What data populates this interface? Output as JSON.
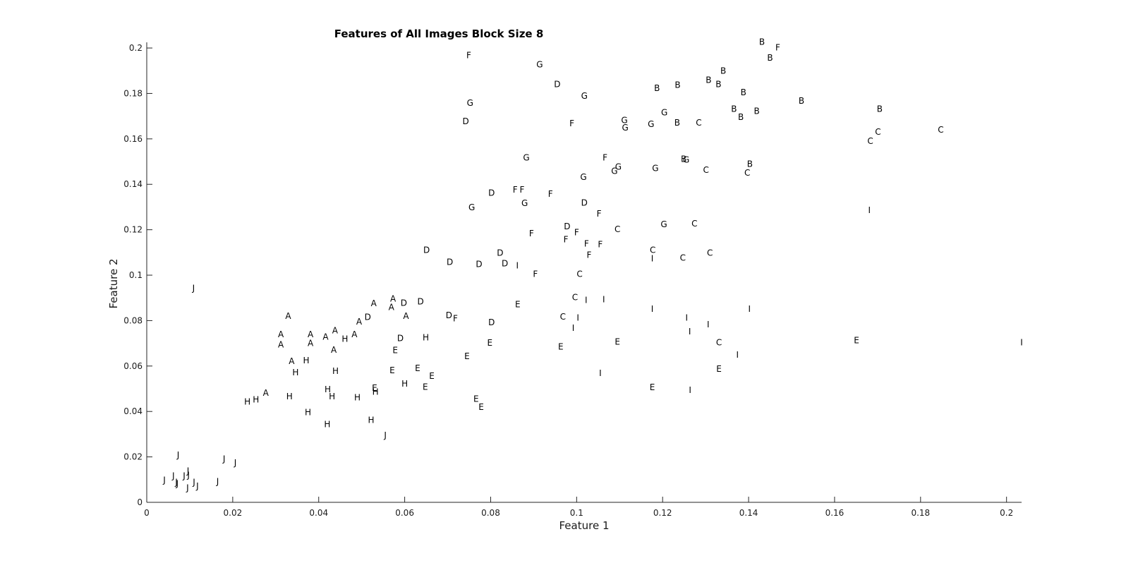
{
  "chart_data": {
    "type": "scatter",
    "title": "Features of All Images Block Size 8",
    "xlabel": "Feature 1",
    "ylabel": "Feature 2",
    "xlim": [
      0,
      0.2035
    ],
    "ylim": [
      0,
      0.2025
    ],
    "xticks": [
      0,
      0.02,
      0.04,
      0.06,
      0.08,
      0.1,
      0.12,
      0.14,
      0.16,
      0.18,
      0.2
    ],
    "xtick_labels": [
      "0",
      "0.02",
      "0.04",
      "0.06",
      "0.08",
      "0.1",
      "0.12",
      "0.14",
      "0.16",
      "0.18",
      "0.2"
    ],
    "yticks": [
      0,
      0.02,
      0.04,
      0.06,
      0.08,
      0.1,
      0.12,
      0.14,
      0.16,
      0.18,
      0.2
    ],
    "ytick_labels": [
      "0",
      "0.02",
      "0.04",
      "0.06",
      "0.08",
      "0.1",
      "0.12",
      "0.14",
      "0.16",
      "0.18",
      "0.2"
    ],
    "grid": false,
    "legend": "none",
    "marker": "text labels",
    "points": [
      {
        "x": 0.0329,
        "y": 0.0818,
        "label": "A"
      },
      {
        "x": 0.0312,
        "y": 0.0737,
        "label": "A"
      },
      {
        "x": 0.0312,
        "y": 0.0693,
        "label": "A"
      },
      {
        "x": 0.0337,
        "y": 0.0619,
        "label": "A"
      },
      {
        "x": 0.0381,
        "y": 0.0737,
        "label": "A"
      },
      {
        "x": 0.0381,
        "y": 0.0699,
        "label": "A"
      },
      {
        "x": 0.0416,
        "y": 0.0727,
        "label": "A"
      },
      {
        "x": 0.0438,
        "y": 0.0755,
        "label": "A"
      },
      {
        "x": 0.0435,
        "y": 0.0669,
        "label": "A"
      },
      {
        "x": 0.0483,
        "y": 0.0737,
        "label": "A"
      },
      {
        "x": 0.0494,
        "y": 0.0794,
        "label": "A"
      },
      {
        "x": 0.0528,
        "y": 0.0875,
        "label": "A"
      },
      {
        "x": 0.0573,
        "y": 0.0894,
        "label": "A"
      },
      {
        "x": 0.0569,
        "y": 0.0857,
        "label": "A"
      },
      {
        "x": 0.0603,
        "y": 0.0818,
        "label": "A"
      },
      {
        "x": 0.0277,
        "y": 0.048,
        "label": "A"
      },
      {
        "x": 0.1431,
        "y": 0.2025,
        "label": "B"
      },
      {
        "x": 0.145,
        "y": 0.1955,
        "label": "B"
      },
      {
        "x": 0.1341,
        "y": 0.1898,
        "label": "B"
      },
      {
        "x": 0.1307,
        "y": 0.1857,
        "label": "B"
      },
      {
        "x": 0.133,
        "y": 0.1838,
        "label": "B"
      },
      {
        "x": 0.1235,
        "y": 0.1835,
        "label": "B"
      },
      {
        "x": 0.1187,
        "y": 0.1822,
        "label": "B"
      },
      {
        "x": 0.1388,
        "y": 0.1803,
        "label": "B"
      },
      {
        "x": 0.1523,
        "y": 0.1765,
        "label": "B"
      },
      {
        "x": 0.1366,
        "y": 0.173,
        "label": "B"
      },
      {
        "x": 0.1419,
        "y": 0.172,
        "label": "B"
      },
      {
        "x": 0.1705,
        "y": 0.173,
        "label": "B"
      },
      {
        "x": 0.1382,
        "y": 0.1695,
        "label": "B"
      },
      {
        "x": 0.1234,
        "y": 0.167,
        "label": "B"
      },
      {
        "x": 0.1403,
        "y": 0.1488,
        "label": "B"
      },
      {
        "x": 0.1249,
        "y": 0.151,
        "label": "B"
      },
      {
        "x": 0.1701,
        "y": 0.1629,
        "label": "C"
      },
      {
        "x": 0.1847,
        "y": 0.1638,
        "label": "C"
      },
      {
        "x": 0.1683,
        "y": 0.1588,
        "label": "C"
      },
      {
        "x": 0.1284,
        "y": 0.167,
        "label": "C"
      },
      {
        "x": 0.1301,
        "y": 0.1462,
        "label": "C"
      },
      {
        "x": 0.1397,
        "y": 0.1449,
        "label": "C"
      },
      {
        "x": 0.1274,
        "y": 0.1225,
        "label": "C"
      },
      {
        "x": 0.1095,
        "y": 0.12,
        "label": "C"
      },
      {
        "x": 0.1177,
        "y": 0.1109,
        "label": "C"
      },
      {
        "x": 0.131,
        "y": 0.1097,
        "label": "C"
      },
      {
        "x": 0.1247,
        "y": 0.1075,
        "label": "C"
      },
      {
        "x": 0.1007,
        "y": 0.1003,
        "label": "C"
      },
      {
        "x": 0.0996,
        "y": 0.0901,
        "label": "C"
      },
      {
        "x": 0.0968,
        "y": 0.0816,
        "label": "C"
      },
      {
        "x": 0.1331,
        "y": 0.0702,
        "label": "C"
      },
      {
        "x": 0.0742,
        "y": 0.1676,
        "label": "D"
      },
      {
        "x": 0.0955,
        "y": 0.1838,
        "label": "D"
      },
      {
        "x": 0.0802,
        "y": 0.1361,
        "label": "D"
      },
      {
        "x": 0.1018,
        "y": 0.1317,
        "label": "D"
      },
      {
        "x": 0.0978,
        "y": 0.1213,
        "label": "D"
      },
      {
        "x": 0.0651,
        "y": 0.1109,
        "label": "D"
      },
      {
        "x": 0.0705,
        "y": 0.1056,
        "label": "D"
      },
      {
        "x": 0.0773,
        "y": 0.1047,
        "label": "D"
      },
      {
        "x": 0.0822,
        "y": 0.1097,
        "label": "D"
      },
      {
        "x": 0.0833,
        "y": 0.105,
        "label": "D"
      },
      {
        "x": 0.0598,
        "y": 0.0876,
        "label": "D"
      },
      {
        "x": 0.0637,
        "y": 0.0882,
        "label": "D"
      },
      {
        "x": 0.0514,
        "y": 0.0813,
        "label": "D"
      },
      {
        "x": 0.0703,
        "y": 0.0822,
        "label": "D"
      },
      {
        "x": 0.0802,
        "y": 0.0791,
        "label": "D"
      },
      {
        "x": 0.059,
        "y": 0.0721,
        "label": "D"
      },
      {
        "x": 0.0863,
        "y": 0.0869,
        "label": "E"
      },
      {
        "x": 0.0578,
        "y": 0.0667,
        "label": "E"
      },
      {
        "x": 0.0745,
        "y": 0.0642,
        "label": "E"
      },
      {
        "x": 0.0798,
        "y": 0.0701,
        "label": "E"
      },
      {
        "x": 0.0963,
        "y": 0.0683,
        "label": "E"
      },
      {
        "x": 0.1095,
        "y": 0.0705,
        "label": "E"
      },
      {
        "x": 0.1651,
        "y": 0.0712,
        "label": "E"
      },
      {
        "x": 0.0571,
        "y": 0.058,
        "label": "E"
      },
      {
        "x": 0.063,
        "y": 0.0589,
        "label": "E"
      },
      {
        "x": 0.0663,
        "y": 0.0555,
        "label": "E"
      },
      {
        "x": 0.053,
        "y": 0.0501,
        "label": "E"
      },
      {
        "x": 0.0648,
        "y": 0.0507,
        "label": "E"
      },
      {
        "x": 0.1176,
        "y": 0.0504,
        "label": "E"
      },
      {
        "x": 0.1331,
        "y": 0.0586,
        "label": "E"
      },
      {
        "x": 0.0766,
        "y": 0.0454,
        "label": "E"
      },
      {
        "x": 0.0778,
        "y": 0.0418,
        "label": "E"
      },
      {
        "x": 0.0749,
        "y": 0.1966,
        "label": "F"
      },
      {
        "x": 0.1468,
        "y": 0.2,
        "label": "F"
      },
      {
        "x": 0.0989,
        "y": 0.1667,
        "label": "F"
      },
      {
        "x": 0.1066,
        "y": 0.1515,
        "label": "F"
      },
      {
        "x": 0.0857,
        "y": 0.1374,
        "label": "F"
      },
      {
        "x": 0.0873,
        "y": 0.1374,
        "label": "F"
      },
      {
        "x": 0.0939,
        "y": 0.1355,
        "label": "F"
      },
      {
        "x": 0.1052,
        "y": 0.1269,
        "label": "F"
      },
      {
        "x": 0.0895,
        "y": 0.1181,
        "label": "F"
      },
      {
        "x": 0.1,
        "y": 0.1187,
        "label": "F"
      },
      {
        "x": 0.0975,
        "y": 0.1156,
        "label": "F"
      },
      {
        "x": 0.1023,
        "y": 0.1137,
        "label": "F"
      },
      {
        "x": 0.1055,
        "y": 0.1134,
        "label": "F"
      },
      {
        "x": 0.1029,
        "y": 0.1087,
        "label": "F"
      },
      {
        "x": 0.0904,
        "y": 0.1003,
        "label": "F"
      },
      {
        "x": 0.0718,
        "y": 0.0807,
        "label": "F"
      },
      {
        "x": 0.0914,
        "y": 0.1926,
        "label": "G"
      },
      {
        "x": 0.1018,
        "y": 0.1788,
        "label": "G"
      },
      {
        "x": 0.0752,
        "y": 0.1756,
        "label": "G"
      },
      {
        "x": 0.1111,
        "y": 0.168,
        "label": "G"
      },
      {
        "x": 0.1113,
        "y": 0.1648,
        "label": "G"
      },
      {
        "x": 0.1173,
        "y": 0.1663,
        "label": "G"
      },
      {
        "x": 0.1204,
        "y": 0.1714,
        "label": "G"
      },
      {
        "x": 0.0883,
        "y": 0.1515,
        "label": "G"
      },
      {
        "x": 0.1097,
        "y": 0.1475,
        "label": "G"
      },
      {
        "x": 0.1088,
        "y": 0.1456,
        "label": "G"
      },
      {
        "x": 0.1183,
        "y": 0.1469,
        "label": "G"
      },
      {
        "x": 0.1255,
        "y": 0.1506,
        "label": "G"
      },
      {
        "x": 0.1016,
        "y": 0.1431,
        "label": "G"
      },
      {
        "x": 0.0756,
        "y": 0.1296,
        "label": "G"
      },
      {
        "x": 0.0879,
        "y": 0.1315,
        "label": "G"
      },
      {
        "x": 0.1203,
        "y": 0.1222,
        "label": "G"
      },
      {
        "x": 0.0649,
        "y": 0.0724,
        "label": "H"
      },
      {
        "x": 0.0461,
        "y": 0.0718,
        "label": "H"
      },
      {
        "x": 0.0371,
        "y": 0.0623,
        "label": "H"
      },
      {
        "x": 0.0346,
        "y": 0.057,
        "label": "H"
      },
      {
        "x": 0.0439,
        "y": 0.0576,
        "label": "H"
      },
      {
        "x": 0.0421,
        "y": 0.0495,
        "label": "H"
      },
      {
        "x": 0.0431,
        "y": 0.0464,
        "label": "H"
      },
      {
        "x": 0.049,
        "y": 0.046,
        "label": "H"
      },
      {
        "x": 0.0532,
        "y": 0.0485,
        "label": "H"
      },
      {
        "x": 0.06,
        "y": 0.052,
        "label": "H"
      },
      {
        "x": 0.0332,
        "y": 0.0464,
        "label": "H"
      },
      {
        "x": 0.0254,
        "y": 0.0451,
        "label": "H"
      },
      {
        "x": 0.0234,
        "y": 0.0441,
        "label": "H"
      },
      {
        "x": 0.0375,
        "y": 0.0395,
        "label": "H"
      },
      {
        "x": 0.042,
        "y": 0.0341,
        "label": "H"
      },
      {
        "x": 0.0522,
        "y": 0.036,
        "label": "H"
      },
      {
        "x": 0.1681,
        "y": 0.1285,
        "label": "I"
      },
      {
        "x": 0.1176,
        "y": 0.1072,
        "label": "I"
      },
      {
        "x": 0.0862,
        "y": 0.104,
        "label": "I"
      },
      {
        "x": 0.1022,
        "y": 0.0888,
        "label": "I"
      },
      {
        "x": 0.1063,
        "y": 0.0891,
        "label": "I"
      },
      {
        "x": 0.1176,
        "y": 0.085,
        "label": "I"
      },
      {
        "x": 0.1402,
        "y": 0.085,
        "label": "I"
      },
      {
        "x": 0.1003,
        "y": 0.081,
        "label": "I"
      },
      {
        "x": 0.1256,
        "y": 0.081,
        "label": "I"
      },
      {
        "x": 0.1306,
        "y": 0.0781,
        "label": "I"
      },
      {
        "x": 0.0992,
        "y": 0.0766,
        "label": "I"
      },
      {
        "x": 0.1263,
        "y": 0.075,
        "label": "I"
      },
      {
        "x": 0.1374,
        "y": 0.0648,
        "label": "I"
      },
      {
        "x": 0.2035,
        "y": 0.0702,
        "label": "I"
      },
      {
        "x": 0.1055,
        "y": 0.0567,
        "label": "I"
      },
      {
        "x": 0.1264,
        "y": 0.0492,
        "label": "I"
      },
      {
        "x": 0.0109,
        "y": 0.0941,
        "label": "J"
      },
      {
        "x": 0.0555,
        "y": 0.0294,
        "label": "J"
      },
      {
        "x": 0.0073,
        "y": 0.0206,
        "label": "J"
      },
      {
        "x": 0.018,
        "y": 0.019,
        "label": "J"
      },
      {
        "x": 0.0206,
        "y": 0.0172,
        "label": "J"
      },
      {
        "x": 0.0096,
        "y": 0.0137,
        "label": "J"
      },
      {
        "x": 0.0062,
        "y": 0.0115,
        "label": "J"
      },
      {
        "x": 0.0087,
        "y": 0.0115,
        "label": "J"
      },
      {
        "x": 0.0097,
        "y": 0.0118,
        "label": "J"
      },
      {
        "x": 0.0041,
        "y": 0.0097,
        "label": "J"
      },
      {
        "x": 0.0069,
        "y": 0.0087,
        "label": "J"
      },
      {
        "x": 0.0071,
        "y": 0.008,
        "label": "J"
      },
      {
        "x": 0.011,
        "y": 0.0087,
        "label": "J"
      },
      {
        "x": 0.0118,
        "y": 0.007,
        "label": "J"
      },
      {
        "x": 0.0165,
        "y": 0.009,
        "label": "J"
      },
      {
        "x": 0.0095,
        "y": 0.0062,
        "label": "J"
      }
    ]
  }
}
